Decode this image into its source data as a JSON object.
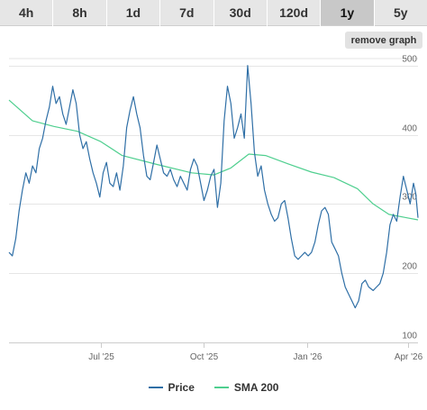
{
  "tabs": [
    {
      "label": "4h",
      "active": false
    },
    {
      "label": "8h",
      "active": false
    },
    {
      "label": "1d",
      "active": false
    },
    {
      "label": "7d",
      "active": false
    },
    {
      "label": "30d",
      "active": false
    },
    {
      "label": "120d",
      "active": false
    },
    {
      "label": "1y",
      "active": true
    },
    {
      "label": "5y",
      "active": false
    }
  ],
  "remove_graph_label": "remove graph",
  "colors": {
    "price": "#2f6fa6",
    "sma": "#4fcf8f",
    "grid": "#e6e6e6",
    "axis_text": "#666666"
  },
  "chart_data": {
    "type": "line",
    "title": "",
    "xlabel": "",
    "ylabel": "",
    "ylim": [
      100,
      510
    ],
    "yticks": [
      100,
      200,
      300,
      400,
      500
    ],
    "xlim": [
      "2025-04-10",
      "2026-04-10"
    ],
    "xticks": [
      {
        "date": "2025-07-01",
        "label": "Jul '25"
      },
      {
        "date": "2025-10-01",
        "label": "Oct '25"
      },
      {
        "date": "2026-01-01",
        "label": "Jan '26"
      },
      {
        "date": "2026-04-01",
        "label": "Apr '26"
      }
    ],
    "legend_position": "bottom",
    "grid": true,
    "series": [
      {
        "name": "Price",
        "points": [
          [
            "2025-04-10",
            230
          ],
          [
            "2025-04-13",
            225
          ],
          [
            "2025-04-16",
            250
          ],
          [
            "2025-04-19",
            290
          ],
          [
            "2025-04-22",
            320
          ],
          [
            "2025-04-25",
            345
          ],
          [
            "2025-04-28",
            330
          ],
          [
            "2025-05-01",
            355
          ],
          [
            "2025-05-04",
            345
          ],
          [
            "2025-05-07",
            380
          ],
          [
            "2025-05-10",
            395
          ],
          [
            "2025-05-13",
            420
          ],
          [
            "2025-05-16",
            440
          ],
          [
            "2025-05-19",
            470
          ],
          [
            "2025-05-22",
            445
          ],
          [
            "2025-05-25",
            455
          ],
          [
            "2025-05-28",
            430
          ],
          [
            "2025-05-31",
            415
          ],
          [
            "2025-06-03",
            440
          ],
          [
            "2025-06-06",
            465
          ],
          [
            "2025-06-09",
            445
          ],
          [
            "2025-06-12",
            400
          ],
          [
            "2025-06-15",
            380
          ],
          [
            "2025-06-18",
            390
          ],
          [
            "2025-06-21",
            365
          ],
          [
            "2025-06-24",
            345
          ],
          [
            "2025-06-27",
            330
          ],
          [
            "2025-06-30",
            310
          ],
          [
            "2025-07-03",
            345
          ],
          [
            "2025-07-06",
            360
          ],
          [
            "2025-07-09",
            330
          ],
          [
            "2025-07-12",
            325
          ],
          [
            "2025-07-15",
            345
          ],
          [
            "2025-07-18",
            320
          ],
          [
            "2025-07-21",
            355
          ],
          [
            "2025-07-24",
            410
          ],
          [
            "2025-07-27",
            435
          ],
          [
            "2025-07-30",
            455
          ],
          [
            "2025-08-02",
            430
          ],
          [
            "2025-08-05",
            410
          ],
          [
            "2025-08-08",
            370
          ],
          [
            "2025-08-11",
            340
          ],
          [
            "2025-08-14",
            335
          ],
          [
            "2025-08-17",
            360
          ],
          [
            "2025-08-20",
            385
          ],
          [
            "2025-08-23",
            365
          ],
          [
            "2025-08-26",
            345
          ],
          [
            "2025-08-29",
            340
          ],
          [
            "2025-09-01",
            350
          ],
          [
            "2025-09-04",
            335
          ],
          [
            "2025-09-07",
            325
          ],
          [
            "2025-09-10",
            340
          ],
          [
            "2025-09-13",
            330
          ],
          [
            "2025-09-16",
            320
          ],
          [
            "2025-09-19",
            350
          ],
          [
            "2025-09-22",
            365
          ],
          [
            "2025-09-25",
            355
          ],
          [
            "2025-09-28",
            330
          ],
          [
            "2025-10-01",
            305
          ],
          [
            "2025-10-04",
            320
          ],
          [
            "2025-10-07",
            340
          ],
          [
            "2025-10-10",
            350
          ],
          [
            "2025-10-13",
            295
          ],
          [
            "2025-10-16",
            330
          ],
          [
            "2025-10-19",
            420
          ],
          [
            "2025-10-22",
            470
          ],
          [
            "2025-10-25",
            445
          ],
          [
            "2025-10-28",
            395
          ],
          [
            "2025-10-31",
            410
          ],
          [
            "2025-11-03",
            430
          ],
          [
            "2025-11-06",
            395
          ],
          [
            "2025-11-09",
            500
          ],
          [
            "2025-11-12",
            445
          ],
          [
            "2025-11-15",
            375
          ],
          [
            "2025-11-18",
            340
          ],
          [
            "2025-11-21",
            355
          ],
          [
            "2025-11-24",
            320
          ],
          [
            "2025-11-27",
            300
          ],
          [
            "2025-11-30",
            285
          ],
          [
            "2025-12-03",
            275
          ],
          [
            "2025-12-06",
            280
          ],
          [
            "2025-12-09",
            300
          ],
          [
            "2025-12-12",
            305
          ],
          [
            "2025-12-15",
            280
          ],
          [
            "2025-12-18",
            250
          ],
          [
            "2025-12-21",
            225
          ],
          [
            "2025-12-24",
            220
          ],
          [
            "2025-12-27",
            225
          ],
          [
            "2025-12-30",
            230
          ],
          [
            "2026-01-02",
            225
          ],
          [
            "2026-01-05",
            230
          ],
          [
            "2026-01-08",
            245
          ],
          [
            "2026-01-11",
            270
          ],
          [
            "2026-01-14",
            290
          ],
          [
            "2026-01-17",
            295
          ],
          [
            "2026-01-20",
            285
          ],
          [
            "2026-01-23",
            245
          ],
          [
            "2026-01-26",
            235
          ],
          [
            "2026-01-29",
            225
          ],
          [
            "2026-02-01",
            200
          ],
          [
            "2026-02-04",
            180
          ],
          [
            "2026-02-07",
            170
          ],
          [
            "2026-02-10",
            160
          ],
          [
            "2026-02-13",
            150
          ],
          [
            "2026-02-16",
            160
          ],
          [
            "2026-02-19",
            185
          ],
          [
            "2026-02-22",
            190
          ],
          [
            "2026-02-25",
            180
          ],
          [
            "2026-03-01",
            175
          ],
          [
            "2026-03-04",
            180
          ],
          [
            "2026-03-07",
            185
          ],
          [
            "2026-03-10",
            200
          ],
          [
            "2026-03-13",
            230
          ],
          [
            "2026-03-16",
            270
          ],
          [
            "2026-03-19",
            285
          ],
          [
            "2026-03-22",
            275
          ],
          [
            "2026-03-25",
            310
          ],
          [
            "2026-03-28",
            340
          ],
          [
            "2026-03-31",
            320
          ],
          [
            "2026-04-03",
            300
          ],
          [
            "2026-04-06",
            330
          ],
          [
            "2026-04-08",
            315
          ],
          [
            "2026-04-10",
            280
          ]
        ]
      },
      {
        "name": "SMA 200",
        "points": [
          [
            "2025-04-10",
            450
          ],
          [
            "2025-05-01",
            420
          ],
          [
            "2025-05-20",
            412
          ],
          [
            "2025-06-10",
            405
          ],
          [
            "2025-07-01",
            390
          ],
          [
            "2025-07-20",
            370
          ],
          [
            "2025-08-20",
            357
          ],
          [
            "2025-09-20",
            345
          ],
          [
            "2025-10-10",
            342
          ],
          [
            "2025-10-25",
            352
          ],
          [
            "2025-11-10",
            372
          ],
          [
            "2025-11-25",
            370
          ],
          [
            "2025-12-15",
            358
          ],
          [
            "2026-01-05",
            346
          ],
          [
            "2026-01-25",
            338
          ],
          [
            "2026-02-15",
            322
          ],
          [
            "2026-03-01",
            300
          ],
          [
            "2026-03-15",
            285
          ],
          [
            "2026-03-31",
            280
          ],
          [
            "2026-04-10",
            277
          ]
        ]
      }
    ]
  }
}
